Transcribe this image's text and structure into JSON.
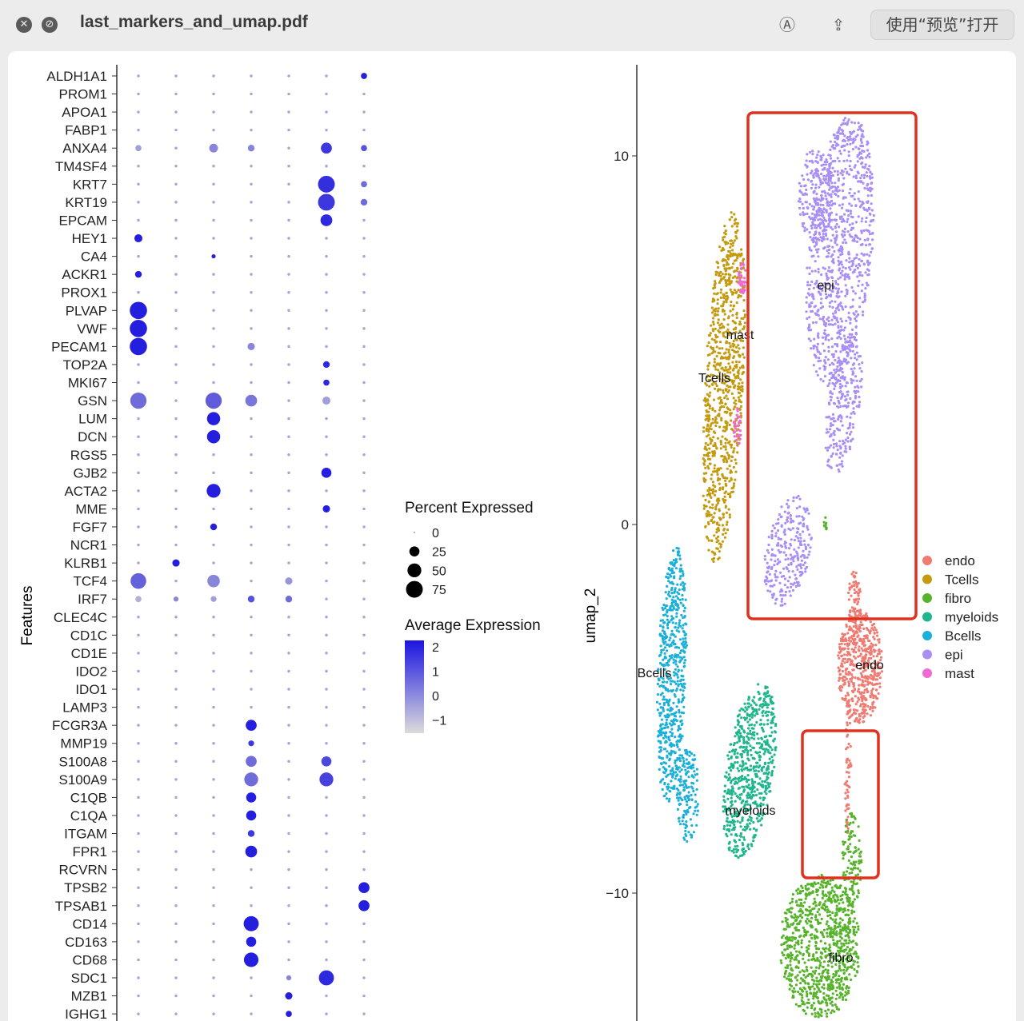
{
  "window": {
    "title": "last_markers_and_umap.pdf",
    "open_with_label": "使用“预览”打开",
    "close_icon": "close-icon",
    "minimize_icon": "minimize-icon",
    "markup_icon": "markup-pen-icon",
    "share_icon": "share-icon"
  },
  "colors": {
    "high_expr": "#1a14e0",
    "low_expr": "#d3d3d3",
    "box": "#e0301e"
  },
  "chart_data": [
    {
      "type": "scatter",
      "subtype": "dotplot",
      "ylabel": "Features",
      "features": [
        "ALDH1A1",
        "PROM1",
        "APOA1",
        "FABP1",
        "ANXA4",
        "TM4SF4",
        "KRT7",
        "KRT19",
        "EPCAM",
        "HEY1",
        "CA4",
        "ACKR1",
        "PROX1",
        "PLVAP",
        "VWF",
        "PECAM1",
        "TOP2A",
        "MKI67",
        "GSN",
        "LUM",
        "DCN",
        "RGS5",
        "GJB2",
        "ACTA2",
        "MME",
        "FGF7",
        "NCR1",
        "KLRB1",
        "TCF4",
        "IRF7",
        "CLEC4C",
        "CD1C",
        "CD1E",
        "IDO2",
        "IDO1",
        "LAMP3",
        "FCGR3A",
        "MMP19",
        "S100A8",
        "S100A9",
        "C1QB",
        "C1QA",
        "ITGAM",
        "FPR1",
        "RCVRN",
        "TPSB2",
        "TPSAB1",
        "CD14",
        "CD163",
        "CD68",
        "SDC1",
        "MZB1",
        "IGHG1"
      ],
      "n_groups": 7,
      "highlights": [
        {
          "feature": "ALDH1A1",
          "group": 7,
          "pct": 8,
          "avg": 2
        },
        {
          "feature": "ANXA4",
          "group": 1,
          "pct": 8,
          "avg": -0.5
        },
        {
          "feature": "ANXA4",
          "group": 3,
          "pct": 18,
          "avg": 0
        },
        {
          "feature": "ANXA4",
          "group": 4,
          "pct": 10,
          "avg": 0
        },
        {
          "feature": "ANXA4",
          "group": 6,
          "pct": 30,
          "avg": 1.5
        },
        {
          "feature": "ANXA4",
          "group": 7,
          "pct": 8,
          "avg": 1
        },
        {
          "feature": "KRT7",
          "group": 6,
          "pct": 75,
          "avg": 1.7
        },
        {
          "feature": "KRT7",
          "group": 7,
          "pct": 8,
          "avg": 0.5
        },
        {
          "feature": "KRT19",
          "group": 6,
          "pct": 75,
          "avg": 1.5
        },
        {
          "feature": "KRT19",
          "group": 7,
          "pct": 10,
          "avg": 0.5
        },
        {
          "feature": "EPCAM",
          "group": 6,
          "pct": 35,
          "avg": 1.8
        },
        {
          "feature": "HEY1",
          "group": 1,
          "pct": 15,
          "avg": 2
        },
        {
          "feature": "CA4",
          "group": 3,
          "pct": 3,
          "avg": 2
        },
        {
          "feature": "ACKR1",
          "group": 1,
          "pct": 10,
          "avg": 2
        },
        {
          "feature": "PLVAP",
          "group": 1,
          "pct": 80,
          "avg": 2
        },
        {
          "feature": "VWF",
          "group": 1,
          "pct": 80,
          "avg": 2
        },
        {
          "feature": "PECAM1",
          "group": 1,
          "pct": 80,
          "avg": 2
        },
        {
          "feature": "PECAM1",
          "group": 4,
          "pct": 12,
          "avg": 0
        },
        {
          "feature": "TOP2A",
          "group": 6,
          "pct": 10,
          "avg": 1.8
        },
        {
          "feature": "MKI67",
          "group": 6,
          "pct": 8,
          "avg": 1.8
        },
        {
          "feature": "GSN",
          "group": 1,
          "pct": 70,
          "avg": 0.5
        },
        {
          "feature": "GSN",
          "group": 3,
          "pct": 70,
          "avg": 0.8
        },
        {
          "feature": "GSN",
          "group": 4,
          "pct": 35,
          "avg": 0.3
        },
        {
          "feature": "GSN",
          "group": 6,
          "pct": 15,
          "avg": -0.5
        },
        {
          "feature": "LUM",
          "group": 3,
          "pct": 45,
          "avg": 2
        },
        {
          "feature": "DCN",
          "group": 3,
          "pct": 45,
          "avg": 2
        },
        {
          "feature": "GJB2",
          "group": 6,
          "pct": 25,
          "avg": 2
        },
        {
          "feature": "ACTA2",
          "group": 3,
          "pct": 50,
          "avg": 2
        },
        {
          "feature": "MME",
          "group": 6,
          "pct": 12,
          "avg": 2
        },
        {
          "feature": "FGF7",
          "group": 3,
          "pct": 10,
          "avg": 2
        },
        {
          "feature": "KLRB1",
          "group": 2,
          "pct": 12,
          "avg": 2
        },
        {
          "feature": "TCF4",
          "group": 1,
          "pct": 65,
          "avg": 0.7
        },
        {
          "feature": "TCF4",
          "group": 3,
          "pct": 40,
          "avg": 0
        },
        {
          "feature": "TCF4",
          "group": 5,
          "pct": 12,
          "avg": -0.3
        },
        {
          "feature": "IRF7",
          "group": 1,
          "pct": 8,
          "avg": -0.8
        },
        {
          "feature": "IRF7",
          "group": 2,
          "pct": 5,
          "avg": 0
        },
        {
          "feature": "IRF7",
          "group": 3,
          "pct": 7,
          "avg": -0.5
        },
        {
          "feature": "IRF7",
          "group": 4,
          "pct": 10,
          "avg": 1
        },
        {
          "feature": "IRF7",
          "group": 5,
          "pct": 10,
          "avg": 0.5
        },
        {
          "feature": "FCGR3A",
          "group": 4,
          "pct": 30,
          "avg": 2
        },
        {
          "feature": "MMP19",
          "group": 4,
          "pct": 7,
          "avg": 1.5
        },
        {
          "feature": "S100A8",
          "group": 4,
          "pct": 30,
          "avg": 0.5
        },
        {
          "feature": "S100A8",
          "group": 6,
          "pct": 25,
          "avg": 1.2
        },
        {
          "feature": "S100A9",
          "group": 4,
          "pct": 50,
          "avg": 0.5
        },
        {
          "feature": "S100A9",
          "group": 6,
          "pct": 50,
          "avg": 1.3
        },
        {
          "feature": "C1QB",
          "group": 4,
          "pct": 25,
          "avg": 2
        },
        {
          "feature": "C1QA",
          "group": 4,
          "pct": 25,
          "avg": 2
        },
        {
          "feature": "ITGAM",
          "group": 4,
          "pct": 10,
          "avg": 1.5
        },
        {
          "feature": "FPR1",
          "group": 4,
          "pct": 35,
          "avg": 2
        },
        {
          "feature": "TPSB2",
          "group": 7,
          "pct": 30,
          "avg": 2
        },
        {
          "feature": "TPSAB1",
          "group": 7,
          "pct": 30,
          "avg": 2
        },
        {
          "feature": "CD14",
          "group": 4,
          "pct": 60,
          "avg": 2
        },
        {
          "feature": "CD163",
          "group": 4,
          "pct": 25,
          "avg": 2
        },
        {
          "feature": "CD68",
          "group": 4,
          "pct": 55,
          "avg": 2
        },
        {
          "feature": "SDC1",
          "group": 5,
          "pct": 5,
          "avg": 0
        },
        {
          "feature": "SDC1",
          "group": 6,
          "pct": 60,
          "avg": 1.8
        },
        {
          "feature": "MZB1",
          "group": 5,
          "pct": 12,
          "avg": 2
        },
        {
          "feature": "IGHG1",
          "group": 5,
          "pct": 8,
          "avg": 2
        }
      ],
      "legend_percent": {
        "title": "Percent Expressed",
        "values": [
          0,
          25,
          50,
          75
        ]
      },
      "legend_average": {
        "title": "Average Expression",
        "ticks": [
          "2",
          "1",
          "0",
          "−1"
        ]
      }
    },
    {
      "type": "scatter",
      "subtype": "umap",
      "ylabel": "umap_2",
      "y_ticks": [
        "10",
        "0",
        "−10"
      ],
      "clusters": [
        {
          "name": "endo",
          "color": "#f07b72"
        },
        {
          "name": "Tcells",
          "color": "#c49a0f"
        },
        {
          "name": "fibro",
          "color": "#56b32a"
        },
        {
          "name": "myeloids",
          "color": "#1fb68e"
        },
        {
          "name": "Bcells",
          "color": "#1bb0d9"
        },
        {
          "name": "epi",
          "color": "#a98ef5"
        },
        {
          "name": "mast",
          "color": "#f06ad2"
        }
      ],
      "cluster_labels": [
        "epi",
        "mast",
        "Tcells",
        "Bcells",
        "endo",
        "myeloids",
        "fibro"
      ]
    }
  ]
}
